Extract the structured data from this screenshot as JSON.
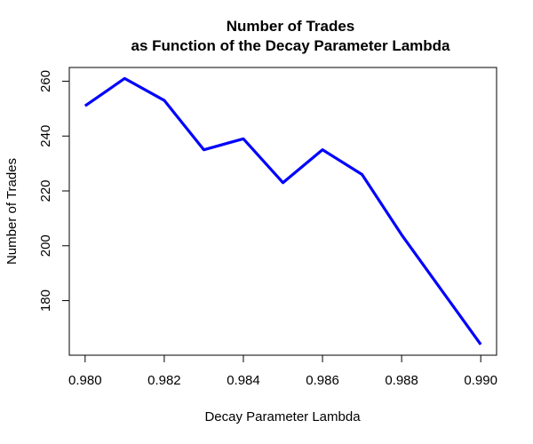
{
  "chart_data": {
    "type": "line",
    "title": "Number of Trades",
    "subtitle": "as Function of the Decay Parameter Lambda",
    "xlabel": "Decay Parameter Lambda",
    "ylabel": "Number of Trades",
    "x": [
      0.98,
      0.981,
      0.982,
      0.983,
      0.984,
      0.985,
      0.986,
      0.987,
      0.988,
      0.989,
      0.99
    ],
    "series": [
      {
        "values": [
          251,
          261,
          253,
          235,
          239,
          223,
          235,
          226,
          204,
          184,
          164
        ],
        "color": "#0000ff"
      }
    ],
    "xticks": [
      "0.980",
      "0.982",
      "0.984",
      "0.986",
      "0.988",
      "0.990"
    ],
    "yticks": [
      "180",
      "200",
      "220",
      "240",
      "260"
    ],
    "xlim": [
      0.9796,
      0.9904
    ],
    "ylim": [
      160.1,
      265.0
    ],
    "grid": false,
    "legend": "none"
  }
}
